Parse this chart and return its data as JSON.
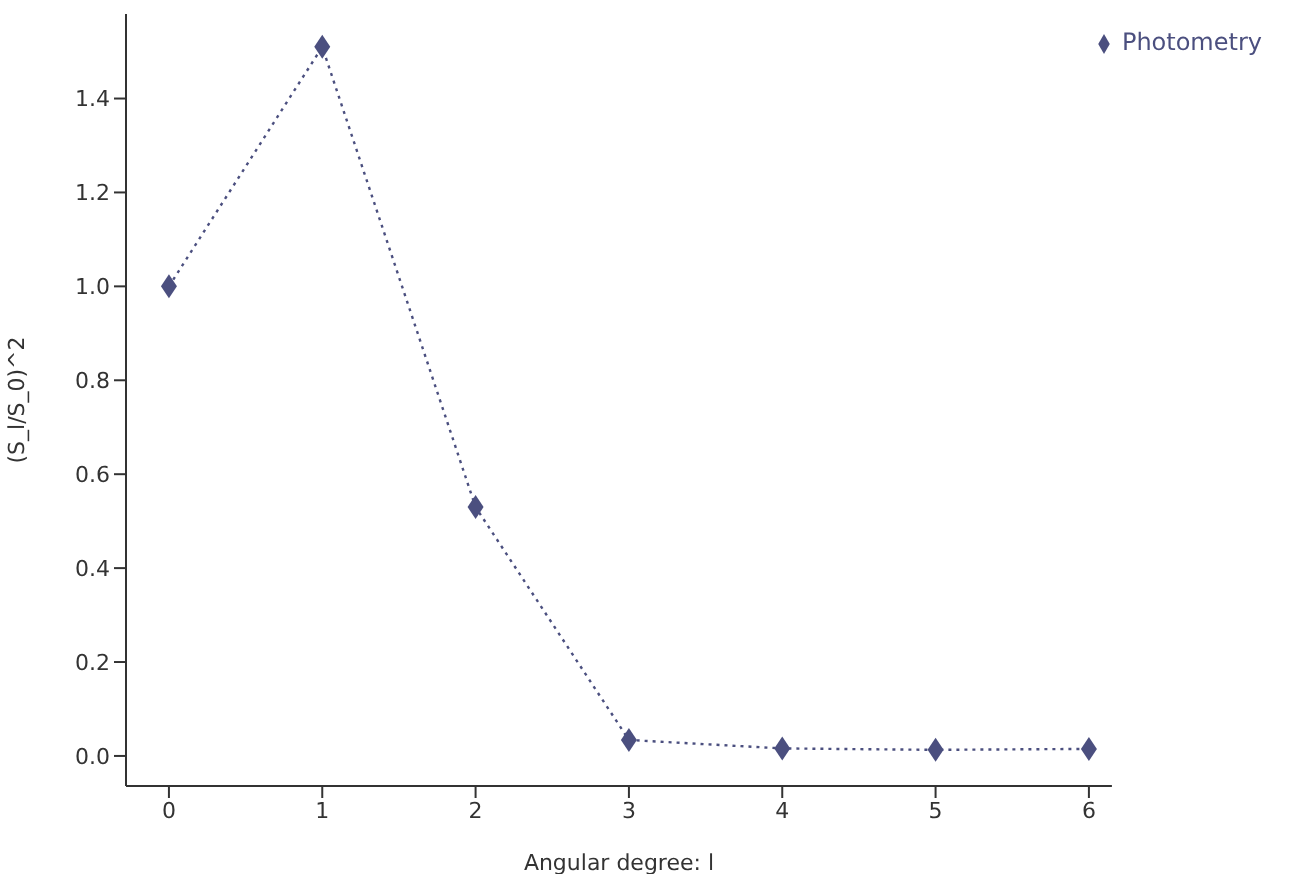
{
  "chart_data": {
    "type": "line",
    "xlabel": "Angular degree: l",
    "ylabel": "(S_l/S_0)^2",
    "x": [
      0,
      1,
      2,
      3,
      4,
      5,
      6
    ],
    "series": [
      {
        "name": "Photometry",
        "color": "#4b4f7f",
        "values": [
          1.0,
          1.51,
          0.53,
          0.034,
          0.016,
          0.013,
          0.015
        ]
      }
    ],
    "xlim": [
      -0.28,
      6.15
    ],
    "xticks": [
      0,
      1,
      2,
      3,
      4,
      5,
      6
    ],
    "ylim": [
      -0.064,
      1.58
    ],
    "yticks": [
      {
        "value": 0,
        "label": "0.0"
      },
      0.2,
      0.4,
      0.6,
      0.8,
      {
        "value": 1,
        "label": "1.0"
      },
      1.2,
      1.4
    ],
    "grid": false,
    "legend": "top right",
    "marker": "diamond",
    "line_style": "dotted"
  }
}
